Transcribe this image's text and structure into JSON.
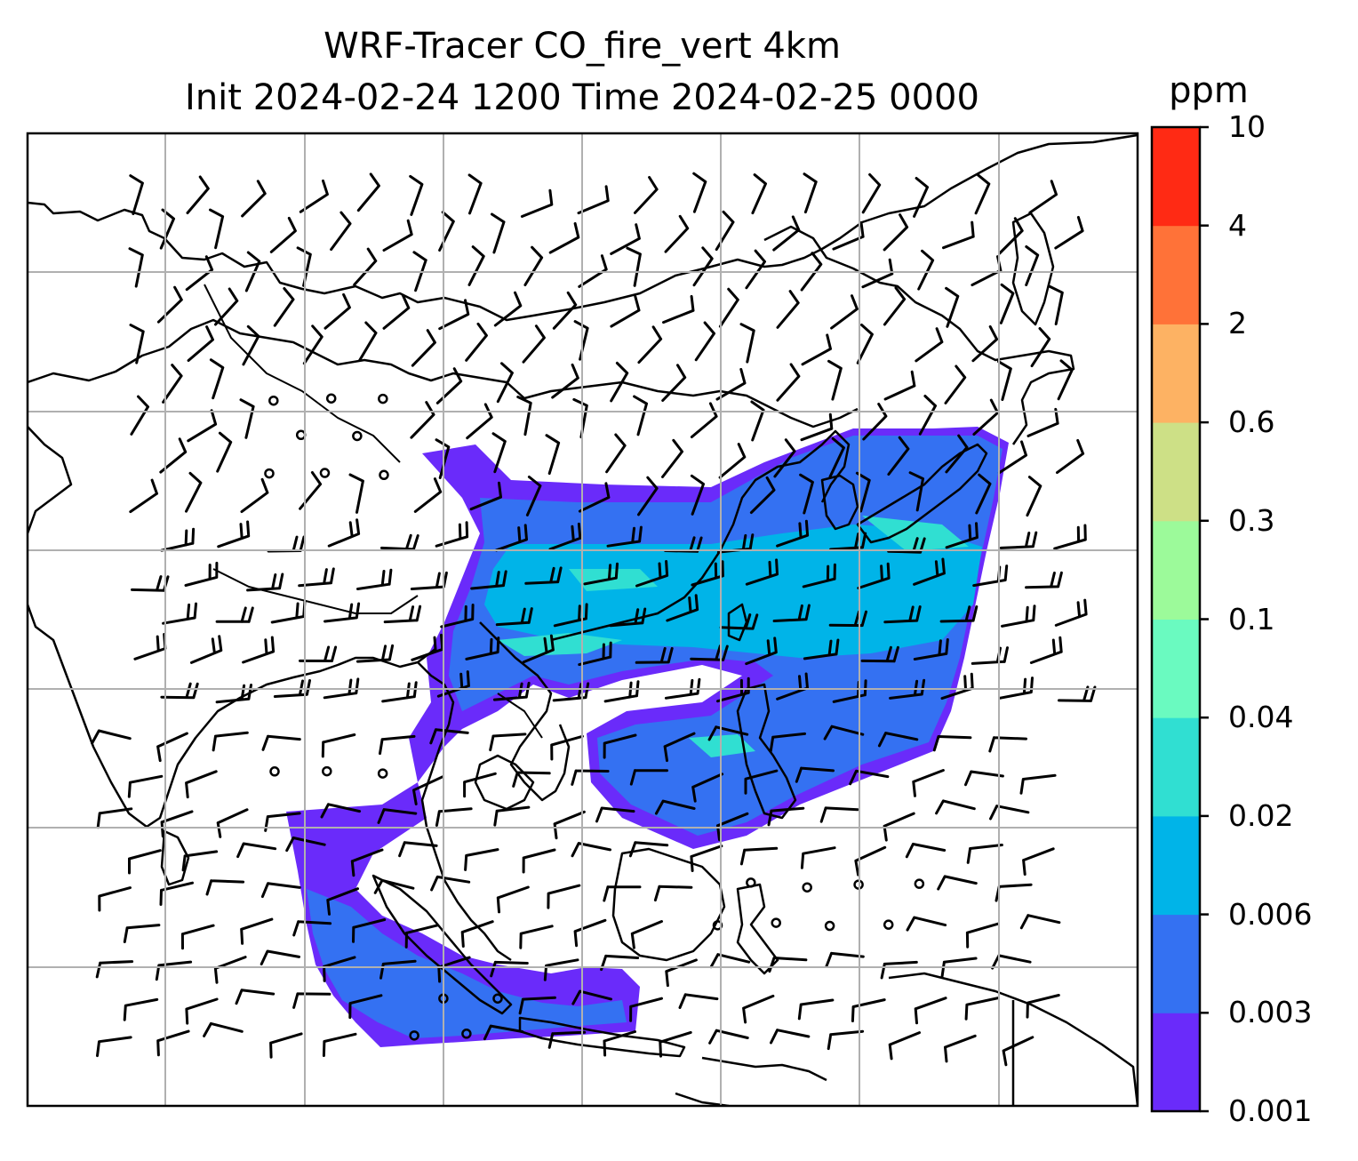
{
  "title": {
    "line1": "WRF-Tracer CO_fire_vert 4km",
    "line2": "Init 2024-02-24 1200 Time 2024-02-25 0000"
  },
  "colorbar": {
    "unit": "ppm",
    "levels": [
      "0.001",
      "0.003",
      "0.006",
      "0.02",
      "0.04",
      "0.1",
      "0.3",
      "0.6",
      "2",
      "4",
      "10"
    ],
    "colors": [
      "#6a2bfa",
      "#3471f2",
      "#00b4e8",
      "#30dfd2",
      "#6afac0",
      "#9cfa9a",
      "#cde086",
      "#fdb263",
      "#ff7238",
      "#ff2a14"
    ]
  },
  "map": {
    "land_outline_color": "#000000",
    "grid_color": "#b0b0b0",
    "grid_lines": true
  }
}
